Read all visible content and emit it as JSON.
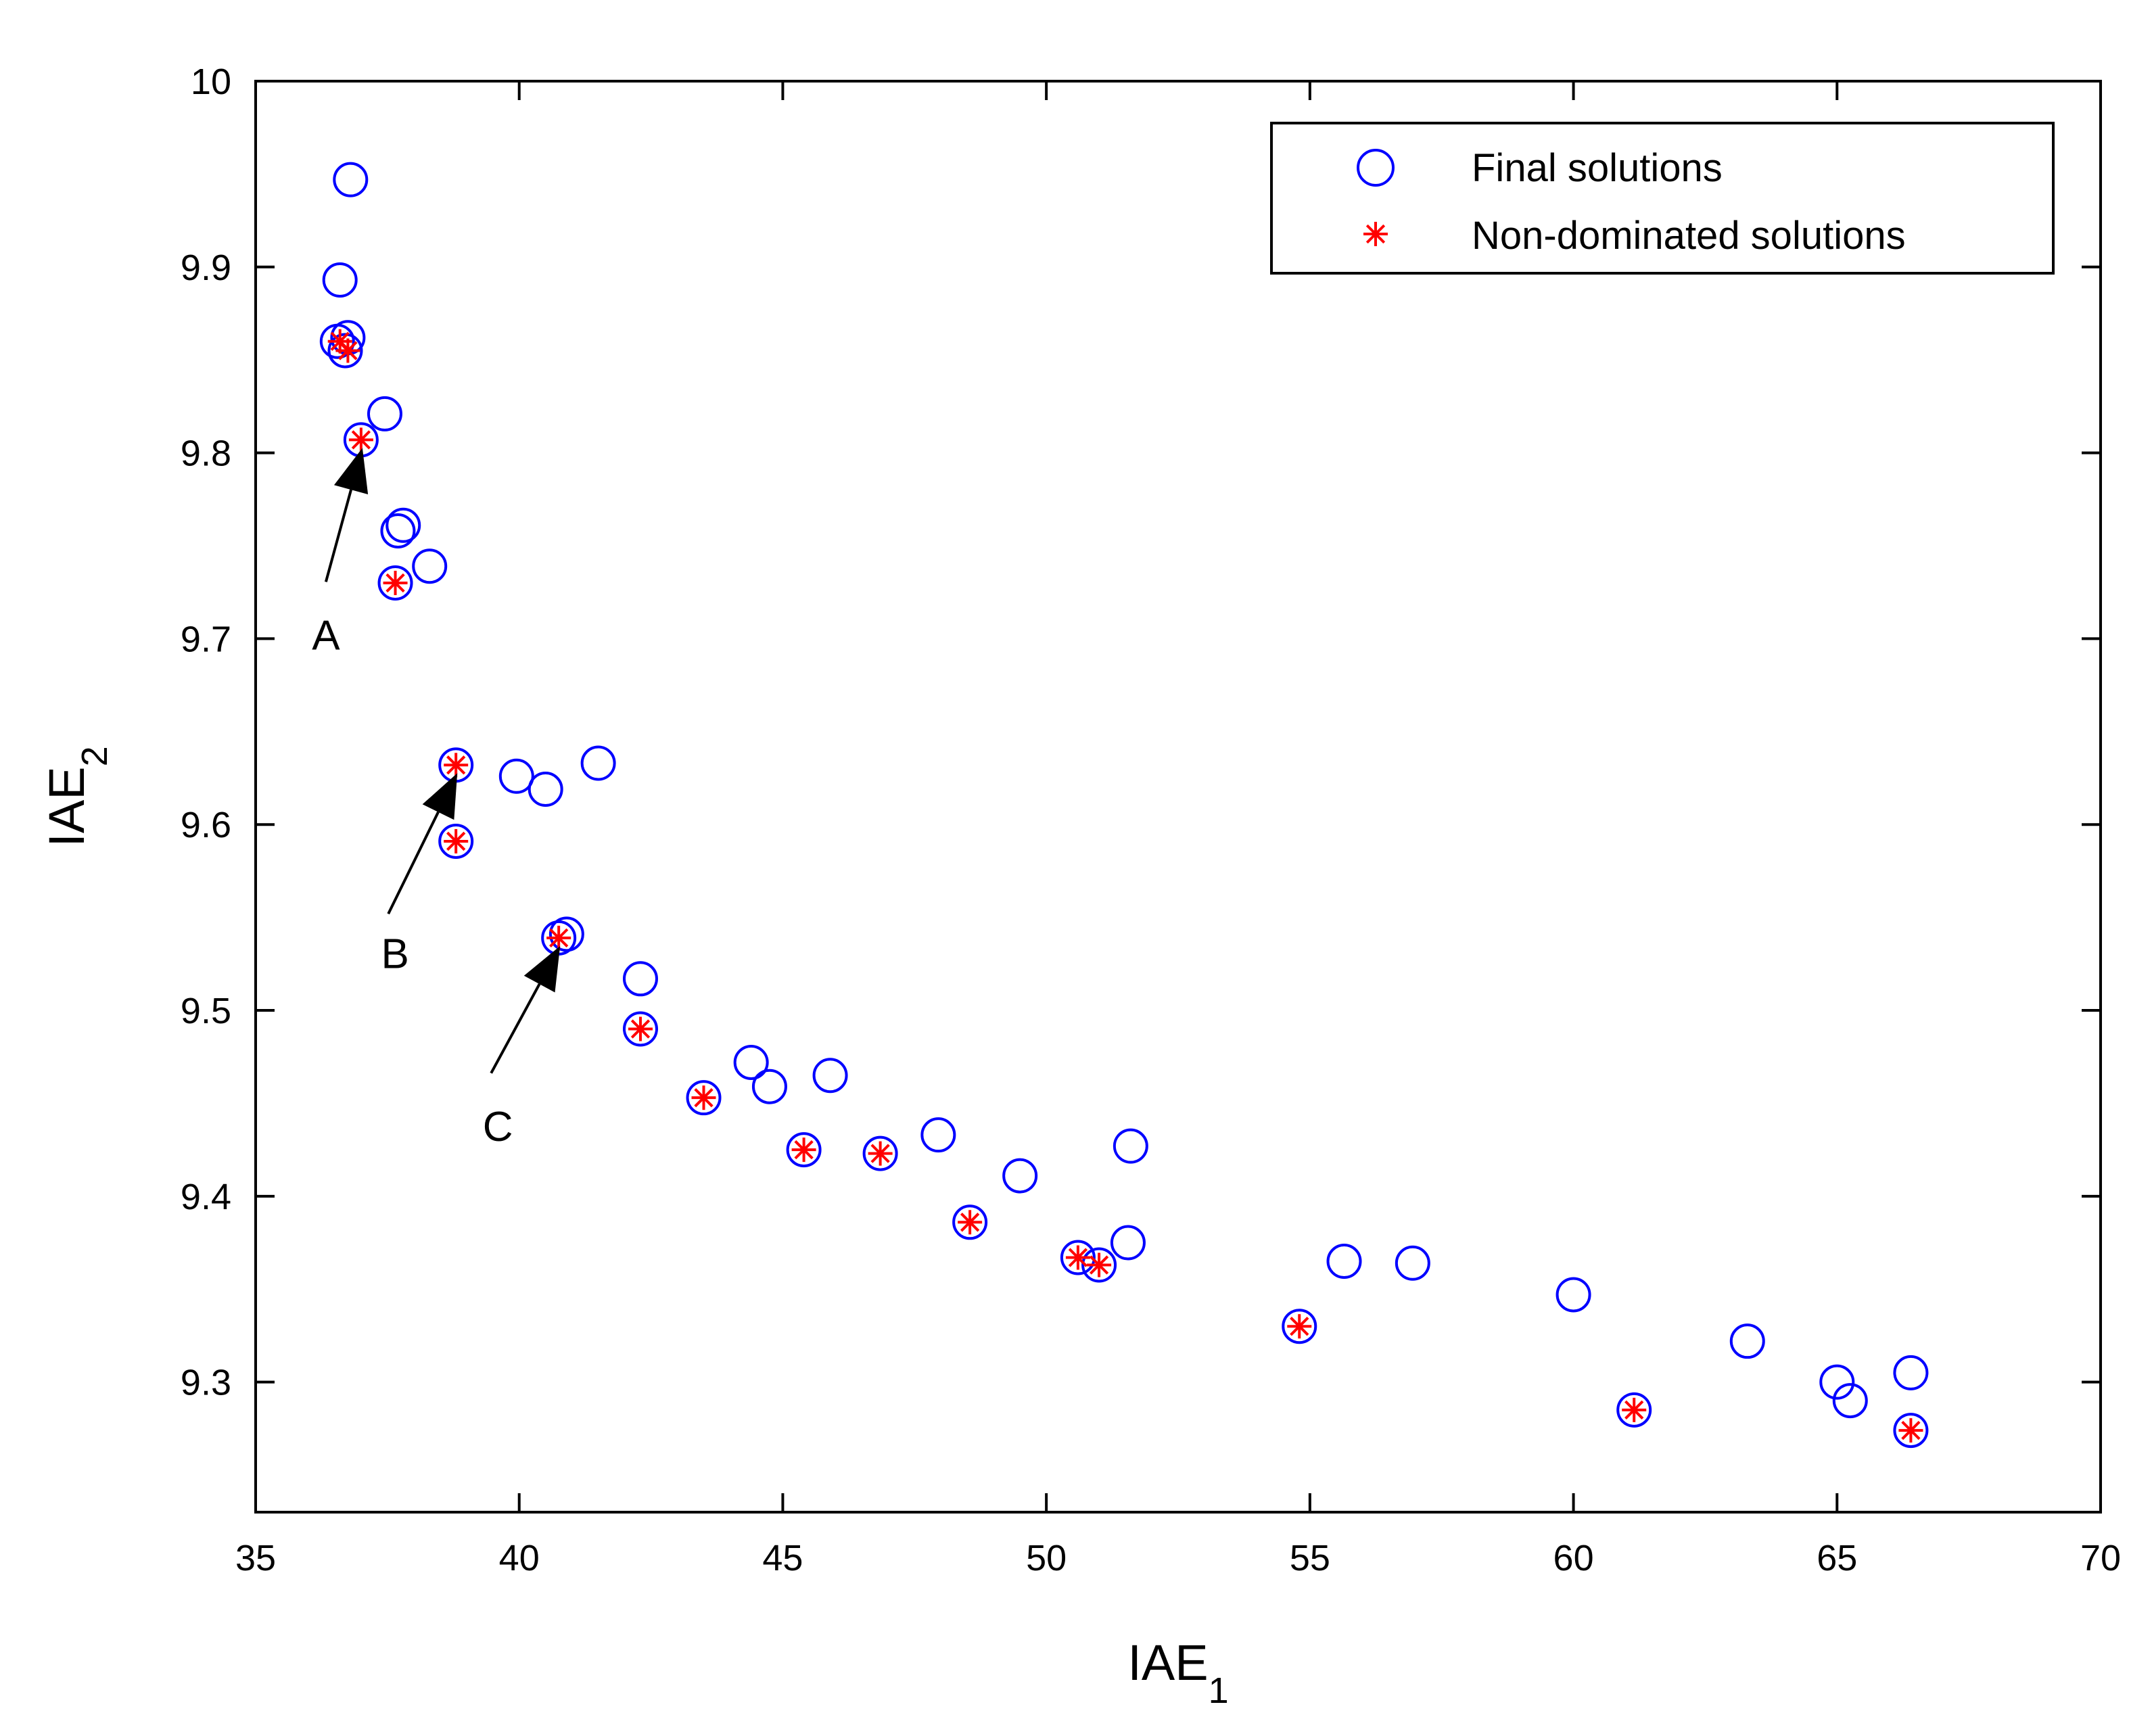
{
  "chart_data": {
    "type": "scatter",
    "xlabel": "IAE",
    "xlabel_sub": "1",
    "ylabel": "IAE",
    "ylabel_sub": "2",
    "xlim": [
      35,
      70
    ],
    "ylim": [
      9.23,
      10.0
    ],
    "xticks": [
      35,
      40,
      45,
      50,
      55,
      60,
      65,
      70
    ],
    "yticks": [
      9.3,
      9.4,
      9.5,
      9.6,
      9.7,
      9.8,
      9.9,
      10
    ],
    "xtick_labels": [
      "35",
      "40",
      "45",
      "50",
      "55",
      "60",
      "65",
      "70"
    ],
    "ytick_labels": [
      "9.3",
      "9.4",
      "9.5",
      "9.6",
      "9.7",
      "9.8",
      "9.9",
      "10"
    ],
    "grid": false,
    "legend_position": "top-right",
    "colors": {
      "final": "#0000ff",
      "nondominated": "#ff0000",
      "axis": "#000000",
      "arrow": "#000000"
    },
    "series": [
      {
        "name": "Final solutions",
        "marker": "circle",
        "x": [
          36.8,
          36.6,
          36.55,
          36.75,
          36.7,
          37.45,
          37.0,
          37.8,
          37.7,
          38.3,
          37.65,
          38.8,
          39.95,
          40.5,
          41.5,
          38.8,
          40.9,
          40.75,
          42.3,
          42.3,
          43.5,
          44.4,
          44.75,
          45.4,
          45.9,
          46.85,
          47.95,
          48.55,
          49.5,
          50.6,
          51.0,
          51.55,
          51.6,
          54.8,
          55.65,
          56.95,
          60.0,
          61.15,
          63.3,
          65.0,
          65.25,
          66.4,
          66.4
        ],
        "y": [
          9.947,
          9.893,
          9.86,
          9.862,
          9.855,
          9.821,
          9.807,
          9.761,
          9.758,
          9.739,
          9.73,
          9.632,
          9.626,
          9.619,
          9.633,
          9.591,
          9.541,
          9.539,
          9.517,
          9.49,
          9.453,
          9.472,
          9.459,
          9.425,
          9.465,
          9.423,
          9.433,
          9.386,
          9.411,
          9.367,
          9.363,
          9.375,
          9.427,
          9.33,
          9.365,
          9.364,
          9.347,
          9.285,
          9.322,
          9.3,
          9.29,
          9.305,
          9.274
        ]
      },
      {
        "name": "Non-dominated solutions",
        "marker": "asterisk",
        "x": [
          36.6,
          36.75,
          37.0,
          37.65,
          38.8,
          38.8,
          40.75,
          42.3,
          43.5,
          45.4,
          46.85,
          48.55,
          50.6,
          51.0,
          54.8,
          61.15,
          66.4
        ],
        "y": [
          9.86,
          9.855,
          9.807,
          9.73,
          9.632,
          9.591,
          9.539,
          9.49,
          9.453,
          9.425,
          9.423,
          9.386,
          9.367,
          9.363,
          9.33,
          9.285,
          9.274
        ]
      }
    ],
    "annotations": [
      {
        "label": "A",
        "x": 37.0,
        "y": 9.807
      },
      {
        "label": "B",
        "x": 38.8,
        "y": 9.632
      },
      {
        "label": "C",
        "x": 40.75,
        "y": 9.539
      }
    ]
  }
}
